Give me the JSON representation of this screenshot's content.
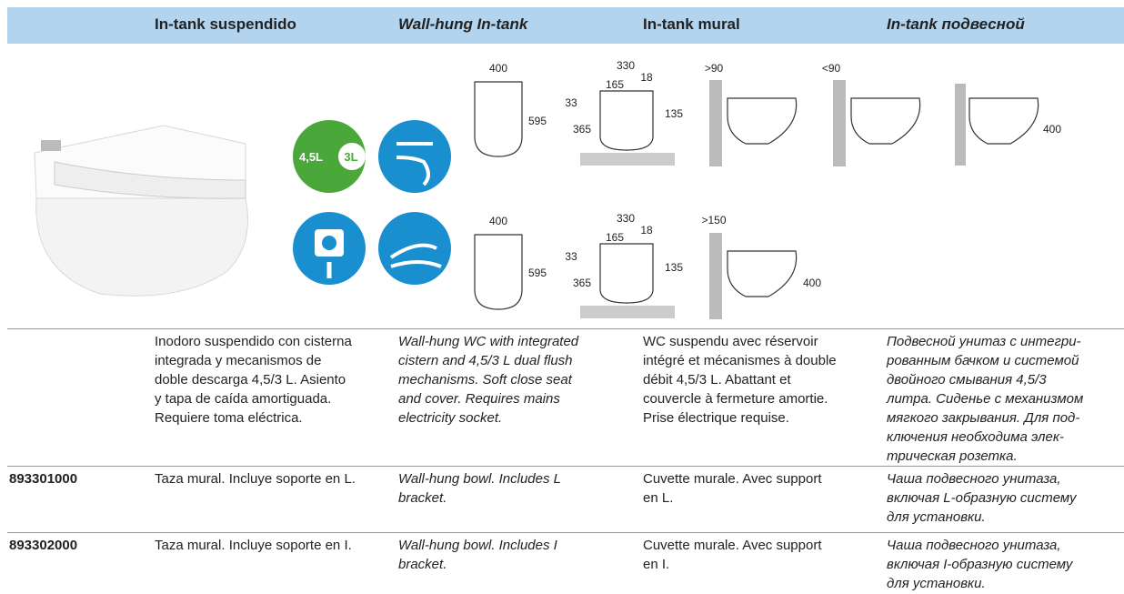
{
  "header": {
    "columns": [
      "In-tank suspendido",
      "Wall-hung In-tank",
      "In-tank mural",
      "In-tank подвесной"
    ]
  },
  "icons": {
    "flush_volumes": [
      "4,5L",
      "3L"
    ]
  },
  "drawings": {
    "row1": [
      "400",
      "595",
      "330",
      "18",
      "165",
      "33",
      "365",
      "135",
      ">90",
      "<90",
      "400"
    ],
    "row2": [
      "400",
      "595",
      "330",
      "18",
      "165",
      "33",
      "365",
      "135",
      ">150",
      "400"
    ]
  },
  "description": {
    "es": [
      "Inodoro suspendido con cisterna",
      "integrada y mecanismos de",
      "doble descarga 4,5/3 L. Asiento",
      "y tapa de caída amortiguada.",
      "Requiere toma eléctrica."
    ],
    "en": [
      "Wall-hung WC with integrated",
      "cistern and 4,5/3 L dual flush",
      "mechanisms. Soft close seat",
      "and cover. Requires mains",
      "electricity socket."
    ],
    "fr": [
      "WC suspendu avec réservoir",
      "intégré et mécanismes à double",
      "débit 4,5/3 L. Abattant et",
      "couvercle à fermeture amortie.",
      "Prise électrique requise."
    ],
    "ru": [
      "Подвесной унитаз с интегри-",
      "рованным бачком и системой",
      "двойного смывания 4,5/3",
      "литра. Сиденье с механизмом",
      "мягкого закрывания. Для под-",
      "ключения необходима элек-",
      "трическая розетка."
    ]
  },
  "products": [
    {
      "code": "893301000",
      "es": [
        "Taza mural. Incluye soporte en L."
      ],
      "en": [
        "Wall-hung bowl. Includes L",
        "bracket."
      ],
      "fr": [
        "Cuvette murale. Avec support",
        "en L."
      ],
      "ru": [
        "Чаша подвесного унитаза,",
        "включая L-образную систему",
        "для установки."
      ]
    },
    {
      "code": "893302000",
      "es": [
        "Taza mural. Incluye soporte en I."
      ],
      "en": [
        "Wall-hung bowl. Includes I",
        "bracket."
      ],
      "fr": [
        "Cuvette murale. Avec support",
        "en I."
      ],
      "ru": [
        "Чаша подвесного унитаза,",
        "включая I-образную систему",
        "для установки."
      ]
    }
  ]
}
